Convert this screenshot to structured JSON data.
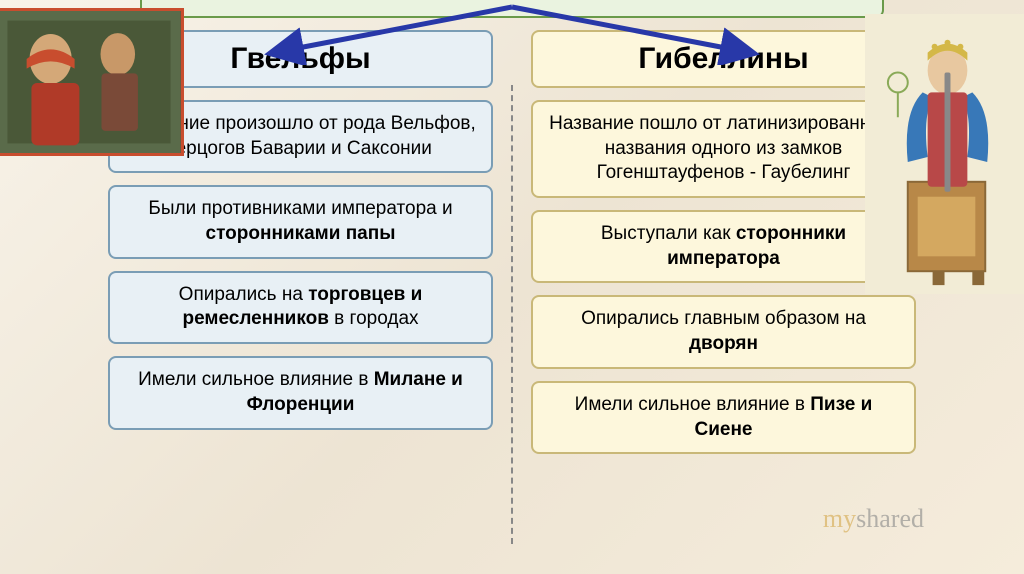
{
  "left": {
    "title": "Гвельфы",
    "boxes": [
      {
        "html": "Название произошло от рода Вельфов, герцогов Баварии и Саксонии"
      },
      {
        "html": "Были противниками императора и <b>сторонниками папы</b>"
      },
      {
        "html": "Опирались на <b>торговцев и ремесленников</b> в городах"
      },
      {
        "html": "Имели сильное влияние в <b>Милане и Флоренции</b>"
      }
    ],
    "colors": {
      "bg": "#e8f0f5",
      "border": "#7a9db5"
    }
  },
  "right": {
    "title": "Гибеллины",
    "boxes": [
      {
        "html": "Название пошло от латинизированного названия одного из замков Гогенштауфенов - Гаубелинг"
      },
      {
        "html": "Выступали как <b>сторонники императора</b>"
      },
      {
        "html": "Опирались главным образом на <b>дворян</b>"
      },
      {
        "html": "Имели сильное влияние в <b>Пизе и Сиене</b>"
      }
    ],
    "colors": {
      "bg": "#fdf7dc",
      "border": "#c9b878"
    }
  },
  "arrow_color": "#2838a8",
  "watermark": {
    "prefix": "my",
    "suffix": "shared"
  },
  "typography": {
    "title_size": 30,
    "body_size": 19
  }
}
